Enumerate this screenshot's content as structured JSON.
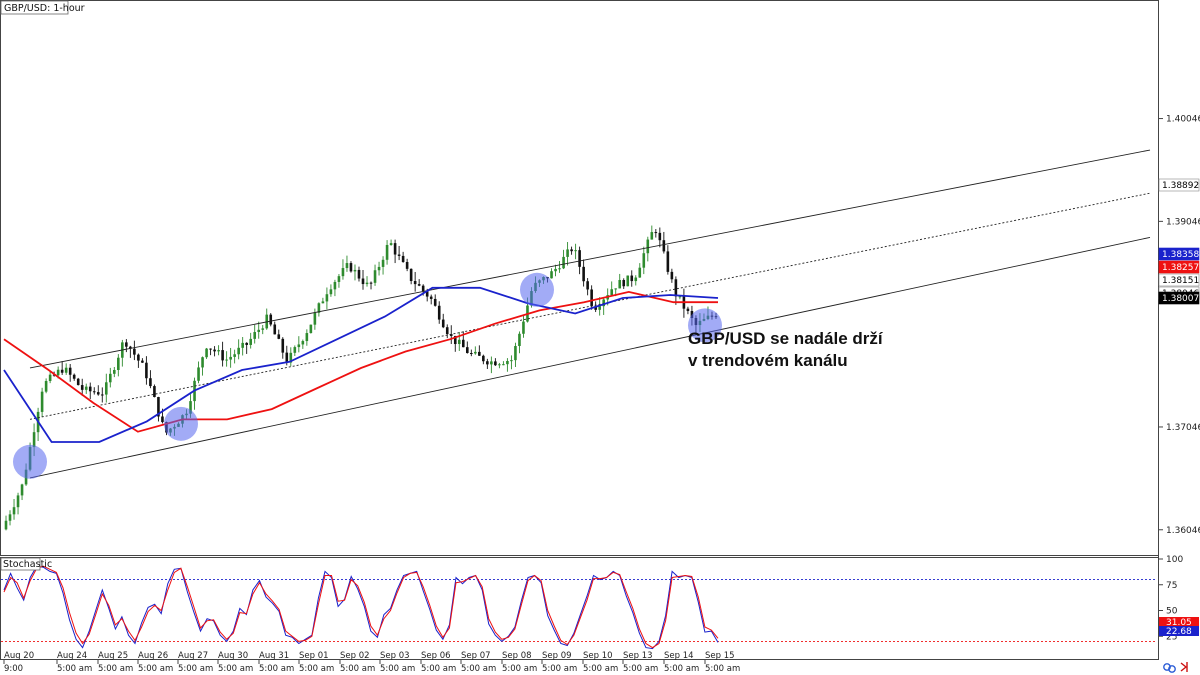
{
  "chart_data": [
    {
      "type": "candlestick",
      "title": "GBP/USD: 1-hour",
      "ylim": [
        1.3582,
        1.4117
      ],
      "y_ticks": [
        "1.40046",
        "1.39046",
        "1.37046",
        "1.36046"
      ],
      "x_ticks": [
        "Aug 20",
        "Aug 24",
        "Aug 25",
        "Aug 26",
        "Aug 27",
        "Aug 30",
        "Aug 31",
        "Sep 01",
        "Sep 02",
        "Sep 03",
        "Sep 06",
        "Sep 07",
        "Sep 08",
        "Sep 09",
        "Sep 10",
        "Sep 13",
        "Sep 14",
        "Sep 15"
      ],
      "x_sub_labels": [
        "9:00",
        "5:00 am",
        "5:00 am",
        "5:00 am",
        "5:00 am",
        "5:00 am",
        "5:00 am",
        "5:00 am",
        "5:00 am",
        "5:00 am",
        "5:00 am",
        "5:00 am",
        "5:00 am",
        "5:00 am",
        "5:00 am",
        "5:00 am",
        "5:00 am",
        "5:00 am"
      ],
      "price_path": [
        {
          "date": "Aug 20",
          "price": 1.3605
        },
        {
          "date": "Aug 23",
          "price": 1.3648
        },
        {
          "date": "Aug 24",
          "price": 1.3745
        },
        {
          "date": "Aug 24",
          "price": 1.3762
        },
        {
          "date": "Aug 25",
          "price": 1.374
        },
        {
          "date": "Aug 25",
          "price": 1.3738
        },
        {
          "date": "Aug 26",
          "price": 1.379
        },
        {
          "date": "Aug 26",
          "price": 1.376
        },
        {
          "date": "Aug 27",
          "price": 1.3698
        },
        {
          "date": "Aug 27",
          "price": 1.3718
        },
        {
          "date": "Aug 30",
          "price": 1.3785
        },
        {
          "date": "Aug 30",
          "price": 1.377
        },
        {
          "date": "Aug 31",
          "price": 1.3785
        },
        {
          "date": "Aug 31",
          "price": 1.381
        },
        {
          "date": "Sep 01",
          "price": 1.3768
        },
        {
          "date": "Sep 02",
          "price": 1.38
        },
        {
          "date": "Sep 02",
          "price": 1.384
        },
        {
          "date": "Sep 03",
          "price": 1.3862
        },
        {
          "date": "Sep 03",
          "price": 1.384
        },
        {
          "date": "Sep 06",
          "price": 1.3885
        },
        {
          "date": "Sep 06",
          "price": 1.385
        },
        {
          "date": "Sep 07",
          "price": 1.383
        },
        {
          "date": "Sep 07",
          "price": 1.3792
        },
        {
          "date": "Sep 08",
          "price": 1.3775
        },
        {
          "date": "Sep 08",
          "price": 1.3768
        },
        {
          "date": "Sep 09",
          "price": 1.377
        },
        {
          "date": "Sep 09",
          "price": 1.384
        },
        {
          "date": "Sep 10",
          "price": 1.3855
        },
        {
          "date": "Sep 10",
          "price": 1.388
        },
        {
          "date": "Sep 13",
          "price": 1.382
        },
        {
          "date": "Sep 13",
          "price": 1.3842
        },
        {
          "date": "Sep 14",
          "price": 1.385
        },
        {
          "date": "Sep 14",
          "price": 1.39
        },
        {
          "date": "Sep 14",
          "price": 1.3835
        },
        {
          "date": "Sep 15",
          "price": 1.3803
        },
        {
          "date": "Sep 15",
          "price": 1.3815
        }
      ],
      "series": [
        {
          "color": "#ee1111",
          "values": [
            1.379,
            1.376,
            1.3728,
            1.37,
            1.3712,
            1.3712,
            1.3722,
            1.3742,
            1.3762,
            1.3778,
            1.379,
            1.3805,
            1.3818,
            1.3826,
            1.3836,
            1.3826,
            1.3826
          ]
        },
        {
          "color": "#1a22cc",
          "values": [
            1.376,
            1.369,
            1.369,
            1.371,
            1.374,
            1.376,
            1.3768,
            1.379,
            1.3812,
            1.384,
            1.384,
            1.3825,
            1.3815,
            1.383,
            1.3833,
            1.383
          ]
        }
      ],
      "channel": {
        "upper": [
          1.3762,
          1.3974
        ],
        "middle": [
          1.3712,
          1.3932
        ],
        "lower": [
          1.3655,
          1.3889
        ]
      },
      "highlighted_touches": [
        "Aug 23",
        "Aug 27",
        "Sep 08",
        "Sep 15"
      ],
      "price_labels": [
        {
          "text": "1.38892",
          "bg": "#ffffff",
          "fg": "#000000"
        },
        {
          "text": "1.38358",
          "bg": "#1a22cc",
          "fg": "#ffffff"
        },
        {
          "text": "1.38257",
          "bg": "#ee1111",
          "fg": "#ffffff"
        },
        {
          "text": "1.38151",
          "bg": "#ffffff",
          "fg": "#000000"
        },
        {
          "text": "1.38046",
          "bg": "#ffffff",
          "fg": "#000000"
        },
        {
          "text": "1.38007",
          "bg": "#000000",
          "fg": "#ffffff"
        }
      ],
      "annotation": [
        "GBP/USD se nadále drží",
        "v trendovém kanálu"
      ]
    },
    {
      "type": "line",
      "title": "Stochastic",
      "ylim": [
        0,
        100
      ],
      "y_ticks": [
        "100",
        "75",
        "50",
        "25"
      ],
      "levels": [
        80,
        20
      ],
      "series": [
        {
          "color": "#1a22cc",
          "values": [
            70,
            86,
            72,
            60,
            82,
            93,
            92,
            88,
            86,
            67,
            41,
            22,
            14,
            30,
            50,
            70,
            52,
            32,
            44,
            26,
            18,
            38,
            53,
            56,
            47,
            76,
            90,
            91,
            68,
            48,
            30,
            42,
            40,
            26,
            20,
            30,
            52,
            46,
            70,
            79,
            63,
            57,
            49,
            26,
            24,
            18,
            22,
            26,
            62,
            88,
            82,
            54,
            61,
            83,
            71,
            54,
            30,
            24,
            46,
            52,
            70,
            84,
            86,
            88,
            69,
            51,
            31,
            22,
            36,
            82,
            76,
            82,
            84,
            70,
            37,
            26,
            20,
            25,
            34,
            60,
            82,
            84,
            77,
            45,
            31,
            18,
            16,
            28,
            46,
            64,
            84,
            80,
            82,
            88,
            84,
            64,
            48,
            28,
            14,
            13,
            20,
            45,
            88,
            82,
            84,
            82,
            58,
            29,
            30,
            19
          ]
        },
        {
          "color": "#ee1111",
          "values": [
            68,
            82,
            77,
            62,
            79,
            91,
            93,
            90,
            87,
            72,
            48,
            28,
            18,
            27,
            46,
            66,
            55,
            36,
            42,
            30,
            21,
            34,
            49,
            55,
            50,
            70,
            87,
            91,
            73,
            53,
            33,
            40,
            41,
            29,
            22,
            28,
            48,
            47,
            66,
            77,
            66,
            59,
            51,
            30,
            25,
            20,
            21,
            25,
            56,
            84,
            84,
            59,
            60,
            80,
            74,
            58,
            35,
            26,
            42,
            50,
            67,
            82,
            86,
            87,
            73,
            55,
            35,
            24,
            33,
            77,
            78,
            81,
            84,
            73,
            42,
            29,
            22,
            24,
            32,
            56,
            79,
            84,
            79,
            50,
            35,
            21,
            17,
            26,
            43,
            60,
            81,
            81,
            82,
            87,
            85,
            68,
            52,
            32,
            18,
            14,
            18,
            40,
            82,
            83,
            84,
            83,
            63,
            34,
            31,
            23
          ]
        }
      ],
      "price_labels": [
        {
          "text": "31.05",
          "bg": "#ee1111",
          "fg": "#ffffff"
        },
        {
          "text": "22.68",
          "bg": "#1a22cc",
          "fg": "#ffffff"
        }
      ]
    }
  ],
  "colors": {
    "bull": "#2e8b2e",
    "bear": "#111111",
    "ma_fast": "#1a22cc",
    "ma_slow": "#ee1111",
    "circle": "#5566ee"
  },
  "footer_icons": [
    "link-charts-icon",
    "arrows-icon"
  ]
}
